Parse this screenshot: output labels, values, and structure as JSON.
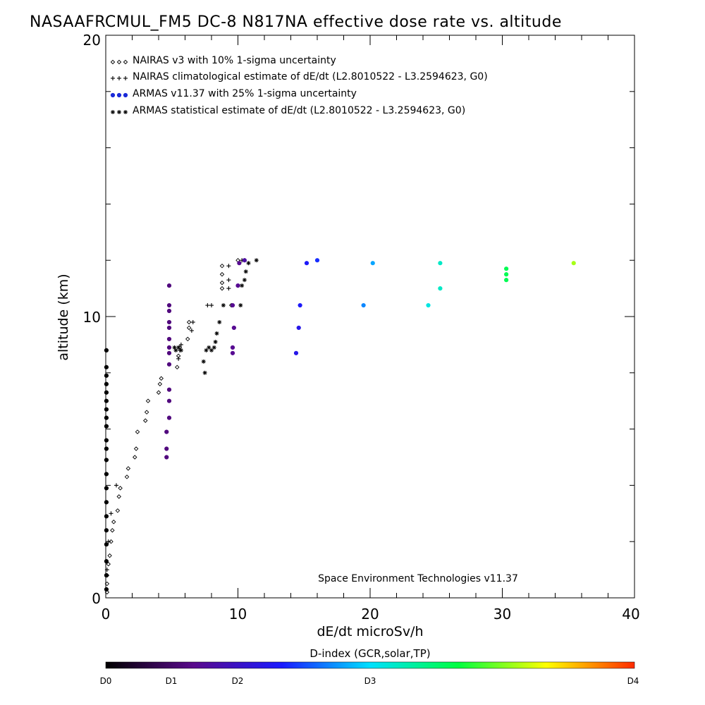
{
  "chart_data": {
    "type": "scatter",
    "title": "NASAAFRCMUL_FM5 DC-8   N817NA effective dose rate vs. altitude",
    "xlabel": "dE/dt microSv/h",
    "ylabel": "altitude (km)",
    "xlim": [
      0,
      40
    ],
    "ylim": [
      0,
      20
    ],
    "x_ticks": [
      "0",
      "10",
      "20",
      "30",
      "40"
    ],
    "y_ticks": [
      "0",
      "10",
      "20"
    ],
    "legend_position": "top-left",
    "credit": "Space Environment Technologies v11.37",
    "colorbar": {
      "title": "D-index (GCR,solar,TP)",
      "labels": [
        "D0",
        "D1",
        "D2",
        "D3",
        "D4"
      ],
      "colors": [
        "#000000",
        "#5a0a8c",
        "#1a1aff",
        "#00e0ff",
        "#00ff40",
        "#ffff00",
        "#ff2a00"
      ]
    },
    "series": [
      {
        "name": "NAIRAS v3 with 10% 1-sigma uncertainty",
        "marker": "diamond",
        "color": "#000000",
        "points": [
          [
            0.1,
            0.2
          ],
          [
            0.1,
            0.5
          ],
          [
            0.1,
            0.8
          ],
          [
            0.2,
            1.2
          ],
          [
            0.3,
            1.5
          ],
          [
            0.4,
            2.0
          ],
          [
            0.5,
            2.4
          ],
          [
            0.6,
            2.7
          ],
          [
            0.9,
            3.1
          ],
          [
            1.0,
            3.6
          ],
          [
            1.1,
            3.9
          ],
          [
            1.6,
            4.3
          ],
          [
            1.7,
            4.6
          ],
          [
            2.2,
            5.0
          ],
          [
            2.3,
            5.3
          ],
          [
            2.4,
            5.9
          ],
          [
            3.0,
            6.3
          ],
          [
            3.1,
            6.6
          ],
          [
            3.2,
            7.0
          ],
          [
            4.0,
            7.3
          ],
          [
            4.1,
            7.6
          ],
          [
            4.2,
            7.8
          ],
          [
            5.4,
            8.2
          ],
          [
            5.5,
            8.6
          ],
          [
            5.6,
            8.9
          ],
          [
            6.2,
            9.2
          ],
          [
            6.3,
            9.6
          ],
          [
            6.3,
            9.8
          ],
          [
            8.8,
            11.0
          ],
          [
            8.8,
            11.2
          ],
          [
            8.8,
            11.5
          ],
          [
            8.8,
            11.8
          ],
          [
            9.5,
            10.4
          ],
          [
            10.0,
            12.0
          ],
          [
            10.5,
            12.0
          ]
        ]
      },
      {
        "name": "NAIRAS climatological estimate of dE/dt (L2.8010522 - L3.2594623, G0)",
        "marker": "plus",
        "color": "#000000",
        "points": [
          [
            0.1,
            1.0
          ],
          [
            0.2,
            2.0
          ],
          [
            0.4,
            3.0
          ],
          [
            0.8,
            4.0
          ],
          [
            5.5,
            8.5
          ],
          [
            5.6,
            8.8
          ],
          [
            5.7,
            9.0
          ],
          [
            6.5,
            9.5
          ],
          [
            6.6,
            9.8
          ],
          [
            7.7,
            10.4
          ],
          [
            8.0,
            10.4
          ],
          [
            9.3,
            11.0
          ],
          [
            9.3,
            11.3
          ],
          [
            9.3,
            11.8
          ],
          [
            10.3,
            12.0
          ]
        ]
      },
      {
        "name": "ARMAS v11.37 with 25% 1-sigma uncertainty",
        "marker": "circle",
        "points": [
          {
            "x": 0.05,
            "y": 8.8,
            "d": 0.0
          },
          {
            "x": 0.05,
            "y": 8.2,
            "d": 0.0
          },
          {
            "x": 0.05,
            "y": 7.9,
            "d": 0.0
          },
          {
            "x": 0.05,
            "y": 7.6,
            "d": 0.0
          },
          {
            "x": 0.05,
            "y": 7.3,
            "d": 0.0
          },
          {
            "x": 0.05,
            "y": 7.0,
            "d": 0.0
          },
          {
            "x": 0.05,
            "y": 6.7,
            "d": 0.0
          },
          {
            "x": 0.05,
            "y": 6.4,
            "d": 0.0
          },
          {
            "x": 0.05,
            "y": 6.1,
            "d": 0.0
          },
          {
            "x": 0.05,
            "y": 5.6,
            "d": 0.0
          },
          {
            "x": 0.05,
            "y": 5.3,
            "d": 0.0
          },
          {
            "x": 0.05,
            "y": 4.9,
            "d": 0.0
          },
          {
            "x": 0.05,
            "y": 4.4,
            "d": 0.0
          },
          {
            "x": 0.05,
            "y": 3.9,
            "d": 0.0
          },
          {
            "x": 0.05,
            "y": 3.4,
            "d": 0.0
          },
          {
            "x": 0.05,
            "y": 2.9,
            "d": 0.0
          },
          {
            "x": 0.05,
            "y": 2.4,
            "d": 0.0
          },
          {
            "x": 0.05,
            "y": 1.9,
            "d": 0.0
          },
          {
            "x": 0.05,
            "y": 1.3,
            "d": 0.0
          },
          {
            "x": 0.05,
            "y": 0.8,
            "d": 0.0
          },
          {
            "x": 0.05,
            "y": 0.3,
            "d": 0.0
          },
          {
            "x": 4.8,
            "y": 11.1,
            "d": 0.6
          },
          {
            "x": 4.8,
            "y": 10.4,
            "d": 0.6
          },
          {
            "x": 4.8,
            "y": 10.2,
            "d": 0.6
          },
          {
            "x": 4.8,
            "y": 9.8,
            "d": 0.6
          },
          {
            "x": 4.8,
            "y": 9.6,
            "d": 0.6
          },
          {
            "x": 4.8,
            "y": 9.2,
            "d": 0.6
          },
          {
            "x": 4.8,
            "y": 8.9,
            "d": 0.6
          },
          {
            "x": 4.8,
            "y": 8.7,
            "d": 0.6
          },
          {
            "x": 4.8,
            "y": 8.3,
            "d": 0.6
          },
          {
            "x": 4.8,
            "y": 7.4,
            "d": 0.6
          },
          {
            "x": 4.8,
            "y": 7.0,
            "d": 0.6
          },
          {
            "x": 4.8,
            "y": 6.4,
            "d": 0.6
          },
          {
            "x": 4.6,
            "y": 5.9,
            "d": 0.6
          },
          {
            "x": 4.6,
            "y": 5.3,
            "d": 0.6
          },
          {
            "x": 4.6,
            "y": 5.0,
            "d": 0.6
          },
          {
            "x": 9.6,
            "y": 10.4,
            "d": 0.7
          },
          {
            "x": 9.7,
            "y": 9.6,
            "d": 0.7
          },
          {
            "x": 9.6,
            "y": 8.9,
            "d": 0.7
          },
          {
            "x": 9.6,
            "y": 8.7,
            "d": 0.7
          },
          {
            "x": 10.0,
            "y": 11.1,
            "d": 0.7
          },
          {
            "x": 10.1,
            "y": 11.9,
            "d": 0.7
          },
          {
            "x": 10.5,
            "y": 12.0,
            "d": 0.8
          },
          {
            "x": 14.4,
            "y": 8.7,
            "d": 1.2
          },
          {
            "x": 14.6,
            "y": 9.6,
            "d": 1.2
          },
          {
            "x": 14.7,
            "y": 10.4,
            "d": 1.3
          },
          {
            "x": 15.2,
            "y": 11.9,
            "d": 1.3
          },
          {
            "x": 16.0,
            "y": 12.0,
            "d": 1.4
          },
          {
            "x": 19.5,
            "y": 10.4,
            "d": 1.7
          },
          {
            "x": 20.2,
            "y": 11.9,
            "d": 1.8
          },
          {
            "x": 24.4,
            "y": 10.4,
            "d": 2.1
          },
          {
            "x": 25.3,
            "y": 11.0,
            "d": 2.2
          },
          {
            "x": 25.3,
            "y": 11.9,
            "d": 2.2
          },
          {
            "x": 30.3,
            "y": 11.7,
            "d": 2.6
          },
          {
            "x": 30.3,
            "y": 11.5,
            "d": 2.6
          },
          {
            "x": 30.3,
            "y": 11.3,
            "d": 2.6
          },
          {
            "x": 35.4,
            "y": 11.9,
            "d": 3.1
          }
        ]
      },
      {
        "name": "ARMAS statistical estimate of dE/dt (L2.8010522 - L3.2594623, G0)",
        "marker": "asterisk",
        "color": "#000000",
        "points": [
          [
            5.2,
            8.9
          ],
          [
            5.3,
            8.8
          ],
          [
            5.5,
            8.9
          ],
          [
            5.7,
            8.8
          ],
          [
            7.4,
            8.4
          ],
          [
            7.5,
            8.0
          ],
          [
            7.6,
            8.8
          ],
          [
            7.8,
            8.9
          ],
          [
            8.0,
            8.8
          ],
          [
            8.2,
            8.9
          ],
          [
            8.3,
            9.1
          ],
          [
            8.4,
            9.4
          ],
          [
            8.6,
            9.8
          ],
          [
            8.9,
            10.4
          ],
          [
            10.3,
            11.1
          ],
          [
            10.5,
            11.3
          ],
          [
            10.6,
            11.6
          ],
          [
            10.8,
            11.9
          ],
          [
            11.4,
            12.0
          ],
          [
            10.2,
            10.4
          ]
        ]
      }
    ]
  }
}
